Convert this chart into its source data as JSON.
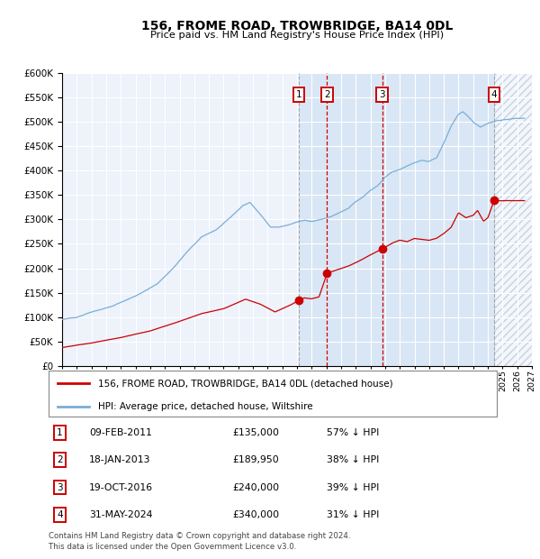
{
  "title": "156, FROME ROAD, TROWBRIDGE, BA14 0DL",
  "subtitle": "Price paid vs. HM Land Registry's House Price Index (HPI)",
  "legend_label_red": "156, FROME ROAD, TROWBRIDGE, BA14 0DL (detached house)",
  "legend_label_blue": "HPI: Average price, detached house, Wiltshire",
  "footer": "Contains HM Land Registry data © Crown copyright and database right 2024.\nThis data is licensed under the Open Government Licence v3.0.",
  "transactions": [
    {
      "num": 1,
      "date": "2011-02-09",
      "label": "09-FEB-2011",
      "price": 135000,
      "pct": "57% ↓ HPI",
      "x_year": 2011.11
    },
    {
      "num": 2,
      "date": "2013-01-18",
      "label": "18-JAN-2013",
      "price": 189950,
      "pct": "38% ↓ HPI",
      "x_year": 2013.05
    },
    {
      "num": 3,
      "date": "2016-10-19",
      "label": "19-OCT-2016",
      "price": 240000,
      "pct": "39% ↓ HPI",
      "x_year": 2016.8
    },
    {
      "num": 4,
      "date": "2024-05-31",
      "label": "31-MAY-2024",
      "price": 340000,
      "pct": "31% ↓ HPI",
      "x_year": 2024.42
    }
  ],
  "ylim": [
    0,
    600000
  ],
  "yticks": [
    0,
    50000,
    100000,
    150000,
    200000,
    250000,
    300000,
    350000,
    400000,
    450000,
    500000,
    550000,
    600000
  ],
  "xlim_left": 1995.0,
  "xlim_right": 2027.0,
  "plot_bg_color": "#edf2fb",
  "highlight_bg_color": "#d8e6f5",
  "grid_color": "#ffffff",
  "red_line_color": "#cc0000",
  "blue_line_color": "#7aaed6",
  "dashed_vline_color": "#cc0000",
  "gray_vline_color": "#999999"
}
